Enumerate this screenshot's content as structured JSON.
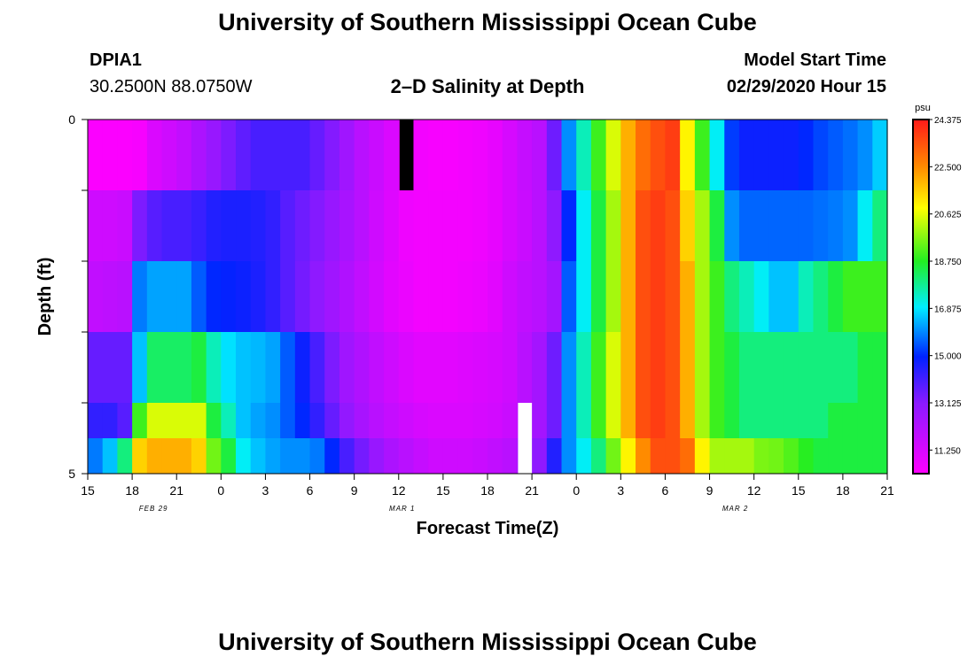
{
  "title": "University of Southern Mississippi Ocean Cube",
  "footer_title": "University of Southern Mississippi Ocean Cube",
  "station": {
    "id": "DPIA1",
    "coords": "30.2500N 88.0750W"
  },
  "subtitle": "2–D Salinity at Depth",
  "model_start": {
    "label": "Model Start Time",
    "value": "02/29/2020 Hour 15"
  },
  "chart_data": {
    "type": "heatmap",
    "title": "2–D Salinity at Depth",
    "xlabel": "Forecast Time(Z)",
    "ylabel": "Depth (ft)",
    "x_tick_labels": [
      "15",
      "18",
      "21",
      "0",
      "3",
      "6",
      "9",
      "12",
      "15",
      "18",
      "21",
      "0",
      "3",
      "6",
      "9",
      "12",
      "15",
      "18",
      "21"
    ],
    "date_labels": [
      {
        "text": "FEB 29",
        "tick_index": 1.4
      },
      {
        "text": "MAR 1",
        "tick_index": 7
      },
      {
        "text": "MAR 2",
        "tick_index": 14.5
      }
    ],
    "y_tick_labels": [
      "0",
      "5"
    ],
    "ylim": [
      0,
      5
    ],
    "hours": 54,
    "colorbar": {
      "unit": "psu",
      "min": 10.3125,
      "max": 24.375,
      "labels": [
        "24.375",
        "22.500",
        "20.625",
        "18.750",
        "16.875",
        "15.000",
        "13.125",
        "11.250"
      ],
      "label_values": [
        24.375,
        22.5,
        20.625,
        18.75,
        16.875,
        15.0,
        13.125,
        11.25
      ]
    },
    "depth_layers": [
      "0-1 ft",
      "1-2 ft",
      "2-3 ft",
      "3-4 ft",
      "4-4.5 ft",
      "4.5-5 ft"
    ],
    "salinity_psu": [
      [
        10.4,
        10.4,
        10.4,
        10.5,
        11.2,
        11.5,
        11.8,
        12.3,
        12.8,
        13.3,
        13.7,
        14.0,
        14.0,
        14.0,
        14.0,
        13.6,
        13.2,
        12.6,
        12.0,
        11.6,
        11.2,
        10.9,
        10.6,
        10.5,
        10.5,
        10.6,
        10.7,
        10.9,
        11.3,
        11.7,
        12.0,
        13.5,
        16.0,
        17.5,
        19.0,
        20.5,
        22.0,
        23.0,
        23.5,
        23.8,
        21.0,
        19.0,
        17.0,
        15.2,
        14.8,
        14.8,
        14.8,
        14.8,
        15.0,
        15.3,
        15.5,
        15.7,
        16.0,
        16.6
      ],
      [
        11.5,
        11.5,
        11.6,
        13.3,
        13.8,
        14.0,
        14.0,
        14.2,
        14.5,
        14.6,
        14.6,
        14.5,
        14.3,
        13.8,
        13.5,
        13.2,
        12.8,
        12.4,
        12.0,
        11.5,
        11.1,
        10.7,
        10.6,
        10.6,
        10.6,
        10.6,
        10.7,
        10.9,
        11.3,
        11.6,
        12.0,
        13.0,
        15.0,
        17.0,
        18.5,
        20.0,
        22.0,
        23.5,
        23.8,
        23.5,
        21.5,
        20.0,
        18.5,
        16.0,
        15.6,
        15.6,
        15.6,
        15.6,
        15.6,
        15.7,
        15.8,
        16.0,
        17.0,
        18.0
      ],
      [
        11.8,
        11.9,
        12.0,
        15.8,
        16.2,
        16.2,
        16.2,
        15.5,
        15.0,
        14.9,
        14.8,
        14.6,
        14.3,
        13.8,
        13.4,
        13.0,
        12.6,
        12.2,
        11.8,
        11.4,
        11.0,
        10.8,
        10.6,
        10.6,
        10.6,
        10.7,
        10.8,
        11.0,
        11.5,
        11.8,
        12.0,
        12.5,
        15.5,
        17.0,
        18.5,
        20.0,
        22.0,
        23.5,
        23.8,
        23.5,
        22.0,
        20.0,
        19.0,
        18.0,
        17.5,
        17.0,
        16.5,
        16.5,
        17.5,
        18.0,
        18.5,
        19.0,
        19.0,
        19.0
      ],
      [
        13.6,
        13.6,
        13.6,
        16.5,
        18.2,
        18.2,
        18.2,
        18.5,
        17.5,
        16.8,
        16.5,
        16.4,
        16.2,
        15.5,
        14.8,
        14.0,
        13.3,
        12.6,
        12.2,
        11.8,
        11.5,
        11.2,
        11.0,
        11.0,
        11.0,
        11.1,
        11.2,
        11.3,
        11.5,
        12.0,
        12.5,
        13.5,
        16.0,
        17.5,
        19.0,
        20.5,
        22.0,
        23.5,
        23.8,
        23.5,
        22.0,
        20.0,
        19.0,
        18.5,
        18.0,
        18.0,
        18.0,
        18.0,
        18.0,
        18.0,
        18.0,
        18.0,
        18.5,
        18.5
      ],
      [
        14.3,
        14.3,
        13.8,
        19.0,
        20.5,
        20.5,
        20.5,
        20.5,
        18.5,
        17.5,
        16.5,
        16.2,
        16.0,
        15.5,
        15.0,
        14.3,
        13.6,
        12.9,
        12.4,
        12.0,
        11.7,
        11.5,
        11.3,
        11.2,
        11.2,
        11.2,
        11.3,
        11.4,
        11.6,
        12.0,
        12.5,
        13.5,
        16.0,
        17.5,
        19.0,
        20.5,
        22.0,
        23.5,
        23.8,
        23.5,
        22.0,
        20.0,
        19.0,
        18.5,
        18.0,
        18.0,
        18.0,
        18.0,
        18.0,
        18.0,
        18.5,
        18.5,
        18.5,
        18.5
      ],
      [
        15.8,
        16.5,
        18.0,
        21.5,
        22.0,
        22.0,
        22.0,
        21.5,
        19.5,
        18.5,
        17.0,
        16.5,
        16.2,
        16.0,
        16.0,
        15.8,
        15.0,
        14.0,
        13.4,
        12.8,
        12.3,
        12.0,
        11.7,
        11.5,
        11.5,
        11.5,
        11.6,
        11.8,
        12.0,
        12.5,
        13.0,
        14.5,
        16.0,
        17.0,
        18.0,
        19.5,
        21.0,
        22.5,
        23.5,
        23.5,
        23.0,
        21.0,
        20.0,
        20.0,
        20.0,
        19.6,
        19.5,
        19.2,
        18.8,
        18.5,
        18.5,
        18.5,
        18.5,
        18.5
      ]
    ],
    "markers": [
      {
        "color": "#000000",
        "hour_index": 21,
        "depth_from": 0,
        "depth_to": 1
      },
      {
        "color": "#ffffff",
        "hour_index": 29,
        "depth_from": 4,
        "depth_to": 5
      }
    ]
  }
}
